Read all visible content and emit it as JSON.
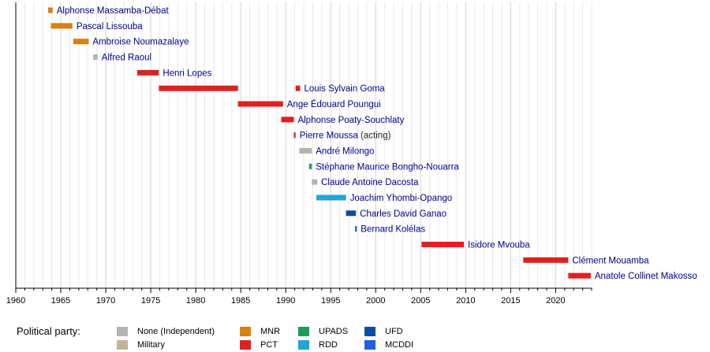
{
  "chart_data": {
    "type": "timeline",
    "xlim": [
      1960,
      2024
    ],
    "x_ticks": [
      1960,
      1965,
      1970,
      1975,
      1980,
      1985,
      1990,
      1995,
      2000,
      2005,
      2010,
      2015,
      2020
    ],
    "grid": true,
    "legend_title": "Political party:",
    "legend_position": "bottom",
    "parties": [
      {
        "key": "none",
        "label": "None (Independent)",
        "color": "#b3b3b3"
      },
      {
        "key": "military",
        "label": "Military",
        "color": "#c2b49c"
      },
      {
        "key": "mnr",
        "label": "MNR",
        "color": "#d98012"
      },
      {
        "key": "pct",
        "label": "PCT",
        "color": "#e02020"
      },
      {
        "key": "upads",
        "label": "UPADS",
        "color": "#219a5f"
      },
      {
        "key": "rdd",
        "label": "RDD",
        "color": "#1fa5d6"
      },
      {
        "key": "ufd",
        "label": "UFD",
        "color": "#0b4ea2"
      },
      {
        "key": "mcddi",
        "label": "MCDDI",
        "color": "#1f5ee6"
      }
    ],
    "rows": [
      {
        "name": "Alphonse Massamba-Débat",
        "start": 1963.6,
        "end": 1964.1,
        "party": "mnr"
      },
      {
        "name": "Pascal Lissouba",
        "start": 1963.9,
        "end": 1966.3,
        "party": "mnr"
      },
      {
        "name": "Ambroise Noumazalaye",
        "start": 1966.4,
        "end": 1968.1,
        "party": "mnr"
      },
      {
        "name": "Alfred Raoul",
        "start": 1968.6,
        "end": 1969.1,
        "party": "none"
      },
      {
        "name": "Henri Lopes",
        "start": 1973.5,
        "end": 1975.9,
        "party": "pct"
      },
      {
        "name": "Louis Sylvain Goma",
        "start": 1975.9,
        "end": 1984.7,
        "party": "pct"
      },
      {
        "name": "",
        "start": 1991.1,
        "end": 1991.6,
        "party": "pct"
      },
      {
        "name": "Ange Édouard Poungui",
        "start": 1984.7,
        "end": 1989.7,
        "party": "pct"
      },
      {
        "name": "Alphonse Poaty-Souchlaty",
        "start": 1989.5,
        "end": 1990.9,
        "party": "pct"
      },
      {
        "name": "Pierre Moussa",
        "name_suffix": "(acting)",
        "start": 1990.9,
        "end": 1991.1,
        "party": "pct"
      },
      {
        "name": "André Milongo",
        "start": 1991.5,
        "end": 1992.9,
        "party": "none"
      },
      {
        "name": "Stéphane Maurice Bongho-Nouarra",
        "start": 1992.6,
        "end": 1992.9,
        "party": "upads"
      },
      {
        "name": "Claude Antoine Dacosta",
        "start": 1992.9,
        "end": 1993.5,
        "party": "none"
      },
      {
        "name": "Joachim Yhombi-Opango",
        "start": 1993.4,
        "end": 1996.7,
        "party": "rdd"
      },
      {
        "name": "Charles David Ganao",
        "start": 1996.7,
        "end": 1997.8,
        "party": "ufd"
      },
      {
        "name": "Bernard Kolélas",
        "start": 1997.7,
        "end": 1997.9,
        "party": "mcddi"
      },
      {
        "name": "Isidore Mvouba",
        "start": 2005.1,
        "end": 2009.8,
        "party": "pct"
      },
      {
        "name": "Clément Mouamba",
        "start": 2016.4,
        "end": 2021.4,
        "party": "pct"
      },
      {
        "name": "Anatole Collinet Makosso",
        "start": 2021.4,
        "end": 2023.9,
        "party": "pct"
      }
    ]
  }
}
